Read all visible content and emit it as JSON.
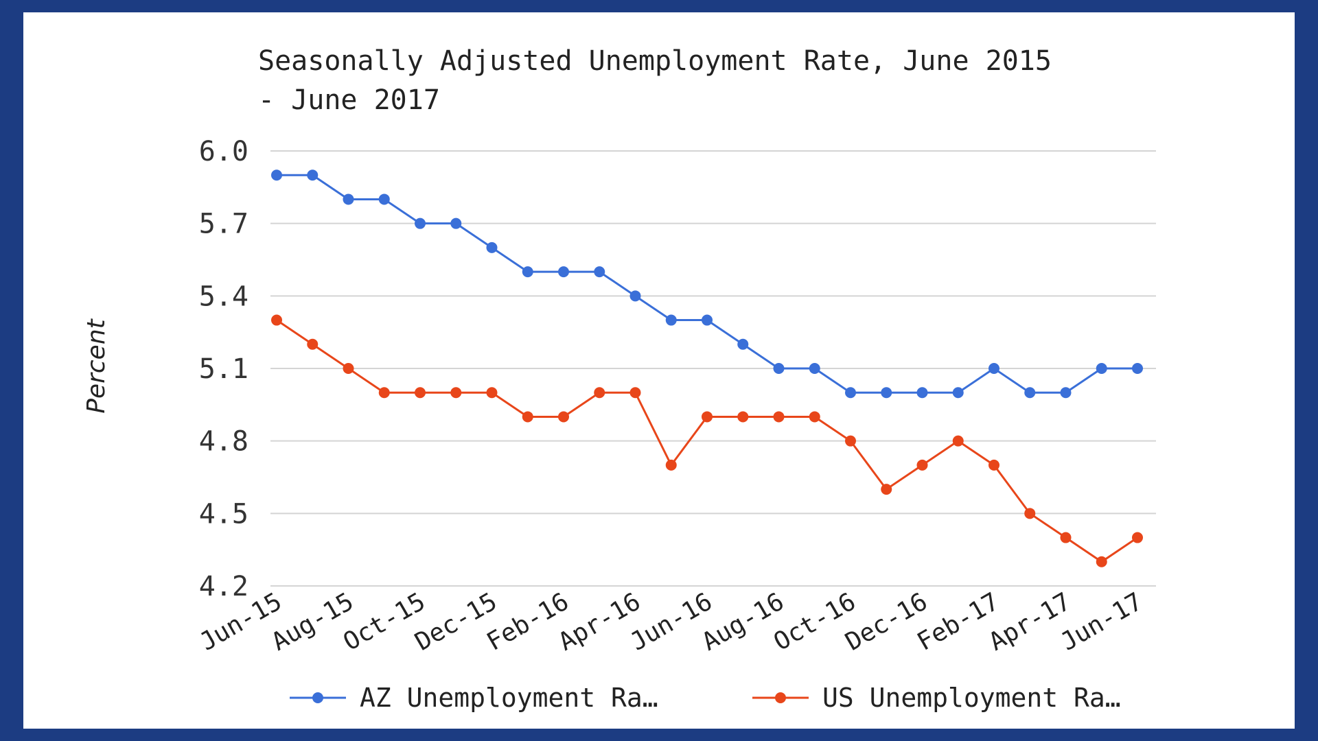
{
  "colors": {
    "frame": "#1c3c82",
    "az": "#3a6fd8",
    "us": "#e8461a",
    "grid": "#d4d4d4"
  },
  "chart_data": {
    "type": "line",
    "title_lines": [
      "Seasonally Adjusted Unemployment Rate, June 2015",
      "- June 2017"
    ],
    "ylabel": "Percent",
    "xlabel": "",
    "ylim": [
      4.2,
      6.0
    ],
    "yticks": [
      "6.0",
      "5.7",
      "5.4",
      "5.1",
      "4.8",
      "4.5",
      "4.2"
    ],
    "grid": true,
    "legend_position": "bottom",
    "x": [
      "Jun-15",
      "Jul-15",
      "Aug-15",
      "Sep-15",
      "Oct-15",
      "Nov-15",
      "Dec-15",
      "Jan-16",
      "Feb-16",
      "Mar-16",
      "Apr-16",
      "May-16",
      "Jun-16",
      "Jul-16",
      "Aug-16",
      "Sep-16",
      "Oct-16",
      "Nov-16",
      "Dec-16",
      "Jan-17",
      "Feb-17",
      "Mar-17",
      "Apr-17",
      "May-17",
      "Jun-17"
    ],
    "x_tick_labels": [
      "Jun-15",
      "Aug-15",
      "Oct-15",
      "Dec-15",
      "Feb-16",
      "Apr-16",
      "Jun-16",
      "Aug-16",
      "Oct-16",
      "Dec-16",
      "Feb-17",
      "Apr-17",
      "Jun-17"
    ],
    "series": [
      {
        "name": "AZ Unemployment Ra…",
        "color": "#3a6fd8",
        "values": [
          5.9,
          5.9,
          5.8,
          5.8,
          5.7,
          5.7,
          5.6,
          5.5,
          5.5,
          5.5,
          5.4,
          5.3,
          5.3,
          5.2,
          5.1,
          5.1,
          5.0,
          5.0,
          5.0,
          5.0,
          5.1,
          5.0,
          5.0,
          5.1,
          5.1
        ]
      },
      {
        "name": "US Unemployment Ra…",
        "color": "#e8461a",
        "values": [
          5.3,
          5.2,
          5.1,
          5.0,
          5.0,
          5.0,
          5.0,
          4.9,
          4.9,
          5.0,
          5.0,
          4.7,
          4.9,
          4.9,
          4.9,
          4.9,
          4.8,
          4.6,
          4.7,
          4.8,
          4.7,
          4.5,
          4.4,
          4.3,
          4.4
        ]
      }
    ]
  }
}
